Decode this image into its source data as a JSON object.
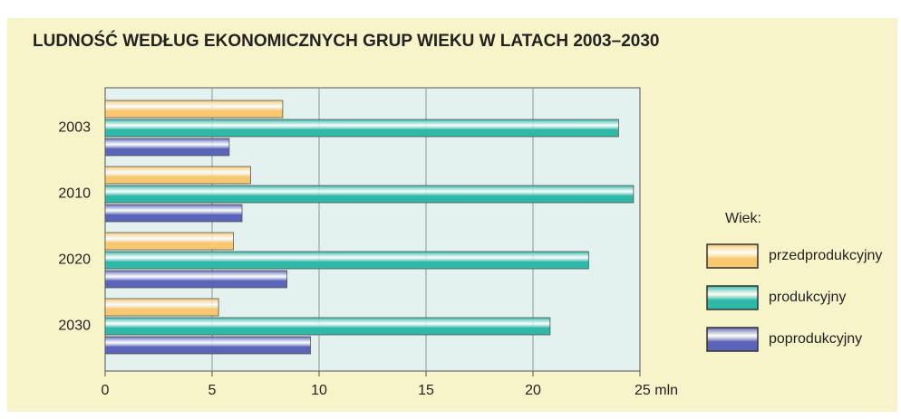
{
  "chart_data": {
    "type": "bar",
    "orientation": "horizontal",
    "title": "LUDNOŚĆ WEDŁUG EKONOMICZNYCH GRUP WIEKU W LATACH 2003–2030",
    "categories": [
      "2003",
      "2010",
      "2020",
      "2030"
    ],
    "series": [
      {
        "name": "przedprodukcyjny",
        "color": "#f8c870",
        "values": [
          8.3,
          6.8,
          6.0,
          5.3
        ]
      },
      {
        "name": "produkcyjny",
        "color": "#2fb8a8",
        "values": [
          24.0,
          24.7,
          22.6,
          20.8
        ]
      },
      {
        "name": "poprodukcyjny",
        "color": "#5a64b8",
        "values": [
          5.8,
          6.4,
          8.5,
          9.6
        ]
      }
    ],
    "legend_title": "Wiek:",
    "xlim": [
      0,
      25
    ],
    "xticks": [
      0,
      5,
      10,
      15,
      20,
      {
        "value": 25,
        "label": "25 mln"
      }
    ],
    "grid": true,
    "legend": "right"
  }
}
